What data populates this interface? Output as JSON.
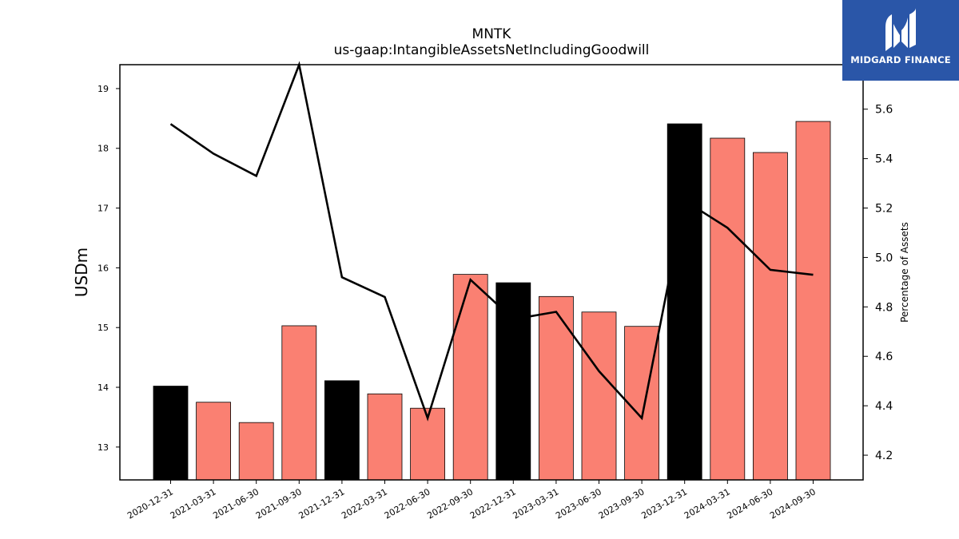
{
  "logo": {
    "brand": "MIDGARD FINANCE"
  },
  "chart_data": {
    "type": "bar",
    "title": "MNTK",
    "subtitle": "us-gaap:IntangibleAssetsNetIncludingGoodwill",
    "ylabel": "USDm",
    "ylabel_right": "Percentage of Assets",
    "categories": [
      "2020-12-31",
      "2021-03-31",
      "2021-06-30",
      "2021-09-30",
      "2021-12-31",
      "2022-03-31",
      "2022-06-30",
      "2022-09-30",
      "2022-12-31",
      "2023-03-31",
      "2023-06-30",
      "2023-09-30",
      "2023-12-31",
      "2024-03-31",
      "2024-06-30",
      "2024-09-30"
    ],
    "ylim": [
      12.45,
      19.4
    ],
    "ylim_right": [
      4.1,
      5.78
    ],
    "yticks": [
      13,
      14,
      15,
      16,
      17,
      18,
      19
    ],
    "yticks_right": [
      4.2,
      4.4,
      4.6,
      4.8,
      5.0,
      5.2,
      5.4,
      5.6
    ],
    "series": [
      {
        "kind": "bar",
        "axis": "left",
        "values": [
          14.02,
          13.75,
          13.41,
          15.03,
          14.11,
          13.89,
          13.65,
          15.89,
          15.75,
          15.52,
          15.26,
          15.02,
          18.41,
          18.17,
          17.93,
          18.45
        ],
        "colors": [
          "#000000",
          "#fa8072",
          "#fa8072",
          "#fa8072",
          "#000000",
          "#fa8072",
          "#fa8072",
          "#fa8072",
          "#000000",
          "#fa8072",
          "#fa8072",
          "#fa8072",
          "#000000",
          "#fa8072",
          "#fa8072",
          "#fa8072"
        ]
      },
      {
        "kind": "line",
        "axis": "right",
        "color": "#000000",
        "values": [
          5.54,
          5.42,
          5.33,
          5.78,
          4.92,
          4.84,
          4.35,
          4.91,
          4.75,
          4.78,
          4.54,
          4.35,
          5.23,
          5.12,
          4.95,
          4.93
        ]
      }
    ]
  }
}
